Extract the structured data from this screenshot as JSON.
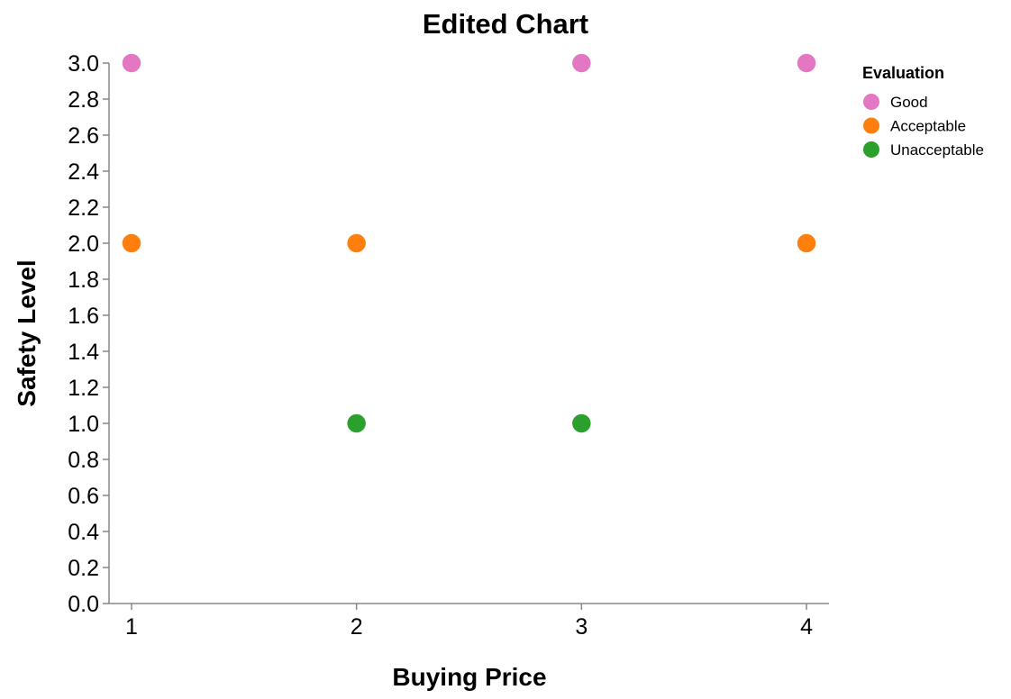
{
  "chart_data": {
    "type": "scatter",
    "title": "Edited Chart",
    "xlabel": "Buying Price",
    "ylabel": "Safety Level",
    "xlim": [
      0.9,
      4.1
    ],
    "ylim": [
      0.0,
      3.0
    ],
    "xticks": [
      "1",
      "2",
      "3",
      "4"
    ],
    "xtick_values": [
      1,
      2,
      3,
      4
    ],
    "yticks": [
      "0.0",
      "0.2",
      "0.4",
      "0.6",
      "0.8",
      "1.0",
      "1.2",
      "1.4",
      "1.6",
      "1.8",
      "2.0",
      "2.2",
      "2.4",
      "2.6",
      "2.8",
      "3.0"
    ],
    "ytick_values": [
      0.0,
      0.2,
      0.4,
      0.6,
      0.8,
      1.0,
      1.2,
      1.4,
      1.6,
      1.8,
      2.0,
      2.2,
      2.4,
      2.6,
      2.8,
      3.0
    ],
    "grid": false,
    "legend": {
      "title": "Evaluation",
      "placement": "right"
    },
    "series": [
      {
        "name": "Good",
        "color": "#e377c2",
        "points": [
          [
            1,
            3
          ],
          [
            3,
            3
          ],
          [
            4,
            3
          ]
        ]
      },
      {
        "name": "Acceptable",
        "color": "#ff7f0e",
        "points": [
          [
            1,
            2
          ],
          [
            2,
            2
          ],
          [
            4,
            2
          ]
        ]
      },
      {
        "name": "Unacceptable",
        "color": "#2ca02c",
        "points": [
          [
            2,
            1
          ],
          [
            3,
            1
          ]
        ]
      }
    ]
  }
}
